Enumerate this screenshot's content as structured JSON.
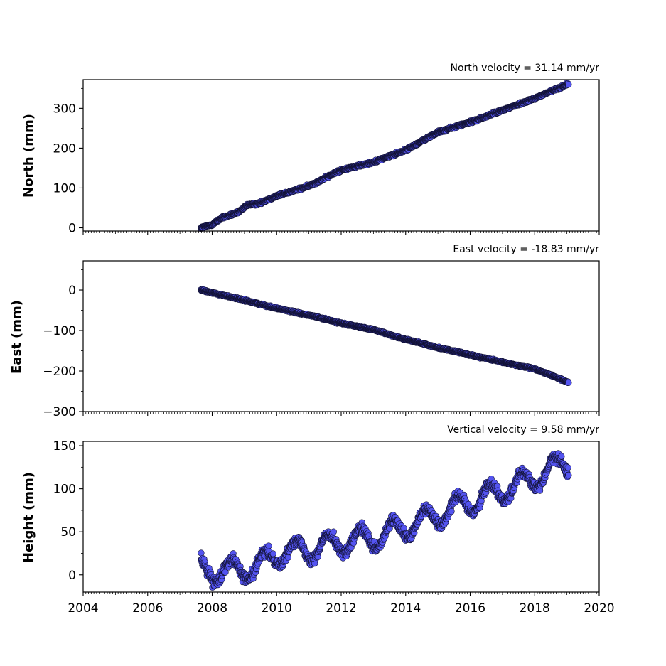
{
  "chart_data": [
    {
      "type": "scatter",
      "title": "North velocity = 31.14 mm/yr",
      "ylabel": "North (mm)",
      "xlabel": "",
      "xlim": [
        2004,
        2020
      ],
      "ylim": [
        -8,
        372
      ],
      "yticks": [
        "0",
        "100",
        "200",
        "300"
      ],
      "yticks_values": [
        0,
        100,
        200,
        300
      ],
      "xtick_labels_shown": false,
      "marker_color": "#5454f0",
      "marker_edge": "#111133",
      "x_range": [
        2007.65,
        2019.05
      ],
      "y_start": 0,
      "y_end": 362,
      "anchors": [
        [
          2007.65,
          0
        ],
        [
          2008.0,
          8
        ],
        [
          2008.3,
          25
        ],
        [
          2008.8,
          38
        ],
        [
          2009.1,
          58
        ],
        [
          2009.4,
          60
        ],
        [
          2010.0,
          80
        ],
        [
          2011.0,
          105
        ],
        [
          2012.0,
          145
        ],
        [
          2013.0,
          165
        ],
        [
          2014.0,
          195
        ],
        [
          2015.0,
          240
        ],
        [
          2016.0,
          265
        ],
        [
          2017.0,
          295
        ],
        [
          2018.0,
          325
        ],
        [
          2019.05,
          362
        ]
      ],
      "noise_mm": 3
    },
    {
      "type": "scatter",
      "title": "East velocity = -18.83 mm/yr",
      "ylabel": "East (mm)",
      "xlabel": "",
      "xlim": [
        2004,
        2020
      ],
      "ylim": [
        -300,
        72
      ],
      "yticks": [
        "0",
        "−100",
        "−200",
        "−300"
      ],
      "yticks_values": [
        0,
        -100,
        -200,
        -300
      ],
      "xtick_labels_shown": false,
      "marker_color": "#5454f0",
      "marker_edge": "#111133",
      "x_range": [
        2007.65,
        2019.05
      ],
      "y_start": 0,
      "y_end": -228,
      "anchors": [
        [
          2007.65,
          0
        ],
        [
          2009.0,
          -25
        ],
        [
          2010.0,
          -45
        ],
        [
          2011.0,
          -62
        ],
        [
          2012.0,
          -82
        ],
        [
          2013.0,
          -98
        ],
        [
          2014.0,
          -122
        ],
        [
          2015.0,
          -142
        ],
        [
          2016.0,
          -160
        ],
        [
          2017.0,
          -178
        ],
        [
          2018.0,
          -195
        ],
        [
          2018.5,
          -210
        ],
        [
          2019.05,
          -228
        ]
      ],
      "noise_mm": 2
    },
    {
      "type": "scatter",
      "title": "Vertical velocity = 9.58 mm/yr",
      "ylabel": "Height (mm)",
      "xlabel": "",
      "xlim": [
        2004,
        2020
      ],
      "ylim": [
        -20,
        155
      ],
      "yticks": [
        "0",
        "50",
        "100",
        "150"
      ],
      "yticks_values": [
        0,
        50,
        100,
        150
      ],
      "xticks": [
        "2004",
        "2006",
        "2008",
        "2010",
        "2012",
        "2014",
        "2016",
        "2018",
        "2020"
      ],
      "xticks_values": [
        2004,
        2006,
        2008,
        2010,
        2012,
        2014,
        2016,
        2018,
        2020
      ],
      "xtick_labels_shown": true,
      "marker_color": "#5454f0",
      "marker_edge": "#111133",
      "x_range": [
        2007.65,
        2019.05
      ],
      "y_start": 5,
      "y_end": 140,
      "anchors": [
        [
          2007.65,
          5
        ],
        [
          2008.5,
          5
        ],
        [
          2009.5,
          10
        ],
        [
          2010.0,
          25
        ],
        [
          2011.0,
          30
        ],
        [
          2012.0,
          38
        ],
        [
          2013.0,
          42
        ],
        [
          2014.0,
          55
        ],
        [
          2015.0,
          70
        ],
        [
          2016.0,
          85
        ],
        [
          2017.0,
          98
        ],
        [
          2018.0,
          112
        ],
        [
          2019.05,
          132
        ]
      ],
      "seasonal_amplitude_mm": 13,
      "seasonal_peak_phase": 0.6,
      "noise_mm": 6
    }
  ]
}
